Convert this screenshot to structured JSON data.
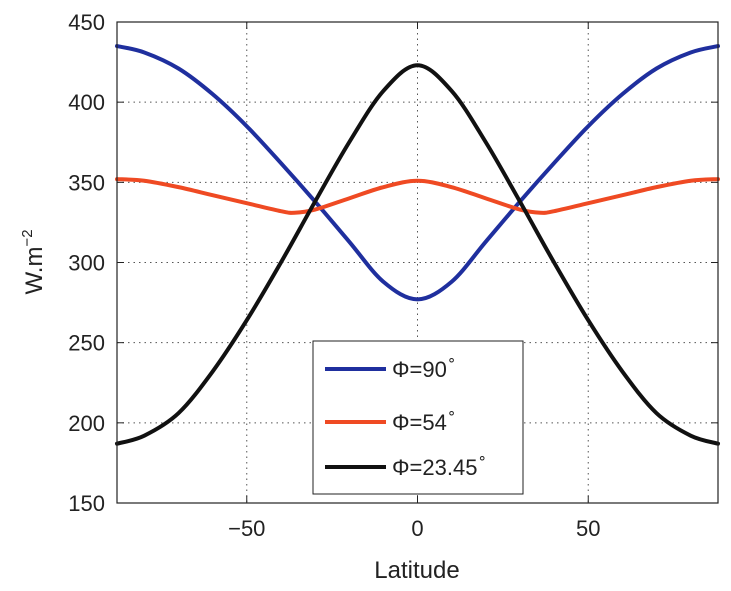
{
  "chart_data": {
    "type": "line",
    "xlabel": "Latitude",
    "ylabel": "W.m",
    "ylabel_superscript": "−2",
    "xlim": [
      -88,
      88
    ],
    "ylim": [
      150,
      450
    ],
    "x_ticks": [
      -50,
      0,
      50
    ],
    "x_tick_labels": [
      "−50",
      "0",
      "50"
    ],
    "y_ticks": [
      150,
      200,
      250,
      300,
      350,
      400,
      450
    ],
    "y_tick_labels": [
      "150",
      "200",
      "250",
      "300",
      "350",
      "400",
      "450"
    ],
    "grid": true,
    "legend_position": "bottom-center",
    "series": [
      {
        "name": "Φ=90",
        "name_superscript": "∘",
        "color": "#1f2f9e",
        "x": [
          -88,
          -80,
          -70,
          -60,
          -50,
          -40,
          -30,
          -20,
          -10,
          0,
          10,
          20,
          30,
          40,
          50,
          60,
          70,
          80,
          88
        ],
        "values": [
          435,
          431,
          421,
          405,
          385,
          362,
          338,
          313,
          288,
          277,
          288,
          313,
          338,
          362,
          385,
          405,
          421,
          431,
          435
        ]
      },
      {
        "name": "Φ=54",
        "name_superscript": "∘",
        "color": "#ef4a23",
        "x": [
          -88,
          -80,
          -70,
          -60,
          -50,
          -40,
          -36,
          -30,
          -20,
          -10,
          0,
          10,
          20,
          30,
          36,
          40,
          50,
          60,
          70,
          80,
          88
        ],
        "values": [
          352,
          351,
          347,
          342,
          337,
          332,
          331,
          333,
          340,
          347,
          351,
          347,
          340,
          333,
          331,
          332,
          337,
          342,
          347,
          351,
          352
        ]
      },
      {
        "name": "Φ=23.45",
        "name_superscript": "∘",
        "color": "#111111",
        "x": [
          -88,
          -80,
          -70,
          -60,
          -50,
          -40,
          -30,
          -20,
          -10,
          0,
          10,
          20,
          30,
          40,
          50,
          60,
          70,
          80,
          88
        ],
        "values": [
          187,
          192,
          206,
          232,
          264,
          300,
          338,
          375,
          407,
          423,
          407,
          375,
          338,
          300,
          264,
          232,
          206,
          192,
          187
        ]
      }
    ]
  }
}
